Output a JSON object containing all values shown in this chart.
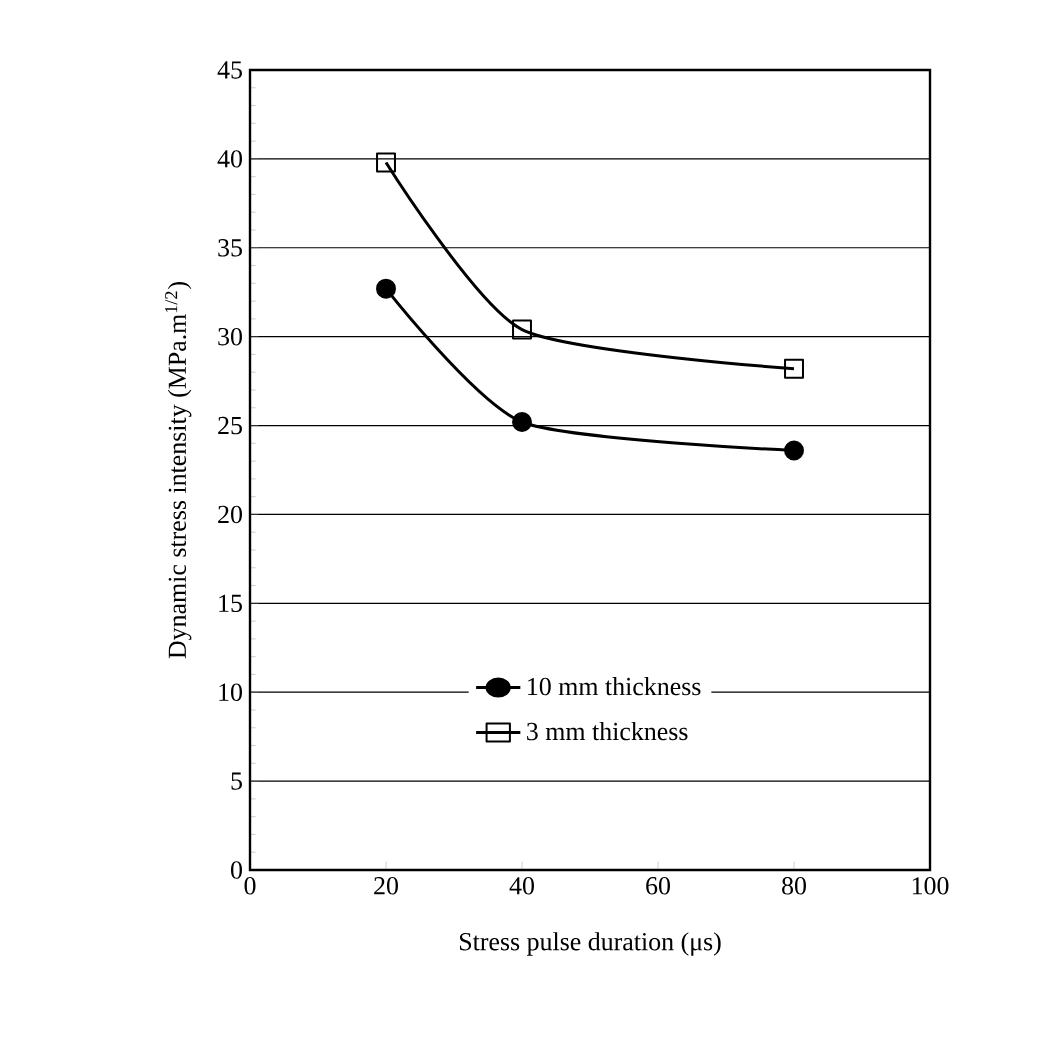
{
  "chart_data": {
    "type": "line",
    "xlabel": "Stress pulse duration (μs)",
    "ylabel": "Dynamic stress intensity (MPa.m$^{1/2}$)",
    "xlim": [
      0,
      100
    ],
    "xticks": [
      0,
      20,
      40,
      60,
      80,
      100
    ],
    "ylim": [
      0,
      45
    ],
    "yticks": [
      0,
      5,
      10,
      15,
      20,
      25,
      30,
      35,
      40,
      45
    ],
    "grid": "y",
    "legend": "bottom",
    "line_style": "solid",
    "series": [
      {
        "name": "10 mm thickness",
        "color": "#000000",
        "marker": "circle",
        "x": [
          20,
          40,
          80
        ],
        "values": [
          32.7,
          25.2,
          23.6
        ]
      },
      {
        "name": "3 mm thickness",
        "color": "#000000",
        "marker": "square",
        "x": [
          20,
          40,
          80
        ],
        "values": [
          39.8,
          30.4,
          28.2
        ]
      }
    ]
  }
}
